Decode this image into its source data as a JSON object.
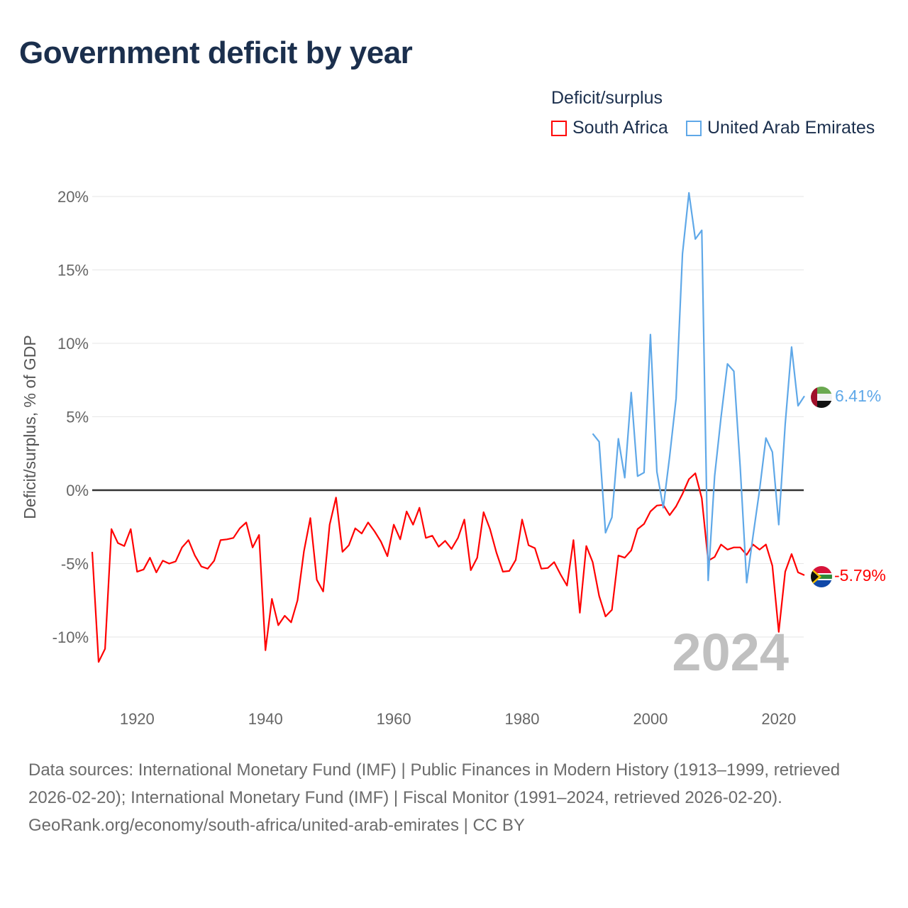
{
  "chart_data": {
    "type": "line",
    "title": "Government deficit by year",
    "ylabel": "Deficit/surplus, % of GDP",
    "xlabel": "",
    "ylim": [
      -13,
      21
    ],
    "xlim": [
      1913,
      2024
    ],
    "y_ticks": [
      20,
      15,
      10,
      5,
      0,
      -5,
      -10
    ],
    "y_tick_labels": [
      "20%",
      "15%",
      "10%",
      "5%",
      "0%",
      "-5%",
      "-10%"
    ],
    "x_ticks": [
      1920,
      1940,
      1960,
      1980,
      2000,
      2020
    ],
    "x_tick_labels": [
      "1920",
      "1940",
      "1960",
      "1980",
      "2000",
      "2020"
    ],
    "grid": true,
    "legend_title": "Deficit/surplus",
    "legend_position": "top-right",
    "year_watermark": "2024",
    "series": [
      {
        "name": "South Africa",
        "color": "#ff0000",
        "start_year": 1913,
        "end_label": "-5.79%",
        "values": [
          -4.2,
          -11.7,
          -10.8,
          -2.65,
          -3.6,
          -3.8,
          -2.65,
          -5.55,
          -5.4,
          -4.6,
          -5.6,
          -4.8,
          -5.0,
          -4.85,
          -3.9,
          -3.4,
          -4.45,
          -5.2,
          -5.35,
          -4.8,
          -3.4,
          -3.35,
          -3.25,
          -2.6,
          -2.2,
          -3.9,
          -3.05,
          -10.9,
          -7.4,
          -9.2,
          -8.55,
          -9.0,
          -7.5,
          -4.15,
          -1.9,
          -6.1,
          -6.9,
          -2.35,
          -0.5,
          -4.2,
          -3.75,
          -2.6,
          -2.95,
          -2.2,
          -2.8,
          -3.5,
          -4.5,
          -2.35,
          -3.35,
          -1.45,
          -2.35,
          -1.2,
          -3.25,
          -3.1,
          -3.85,
          -3.45,
          -4.0,
          -3.25,
          -2.0,
          -5.45,
          -4.6,
          -1.5,
          -2.65,
          -4.25,
          -5.55,
          -5.5,
          -4.75,
          -2.0,
          -3.75,
          -3.95,
          -5.35,
          -5.3,
          -4.9,
          -5.75,
          -6.5,
          -3.4,
          -8.35,
          -3.8,
          -4.9,
          -7.2,
          -8.6,
          -8.15,
          -4.45,
          -4.6,
          -4.1,
          -2.65,
          -2.3,
          -1.45,
          -1.05,
          -1.0,
          -1.7,
          -1.1,
          -0.25,
          0.75,
          1.15,
          -0.55,
          -4.8,
          -4.55,
          -3.7,
          -4.05,
          -3.9,
          -3.9,
          -4.4,
          -3.7,
          -4.05,
          -3.7,
          -5.15,
          -9.65,
          -5.55,
          -4.35,
          -5.6,
          -5.79
        ]
      },
      {
        "name": "United Arab Emirates",
        "color": "#5fa8e8",
        "start_year": 1991,
        "end_label": "6.41%",
        "values": [
          3.85,
          3.3,
          -2.9,
          -1.85,
          3.5,
          0.85,
          6.65,
          0.95,
          1.2,
          10.6,
          1.25,
          -1.2,
          2.3,
          6.25,
          16.1,
          20.25,
          17.1,
          17.7,
          -6.15,
          0.95,
          4.95,
          8.6,
          8.1,
          1.55,
          -6.3,
          -3.1,
          0.0,
          3.55,
          2.6,
          -2.35,
          4.5,
          9.75,
          5.75,
          6.41
        ]
      }
    ]
  },
  "footer": {
    "sources": "Data sources: International Monetary Fund (IMF) | Public Finances in Modern History (1913–1999, retrieved 2026-02-20); International Monetary Fund (IMF) | Fiscal Monitor (1991–2024, retrieved 2026-02-20).",
    "credit": "GeoRank.org/economy/south-africa/united-arab-emirates | CC BY"
  }
}
